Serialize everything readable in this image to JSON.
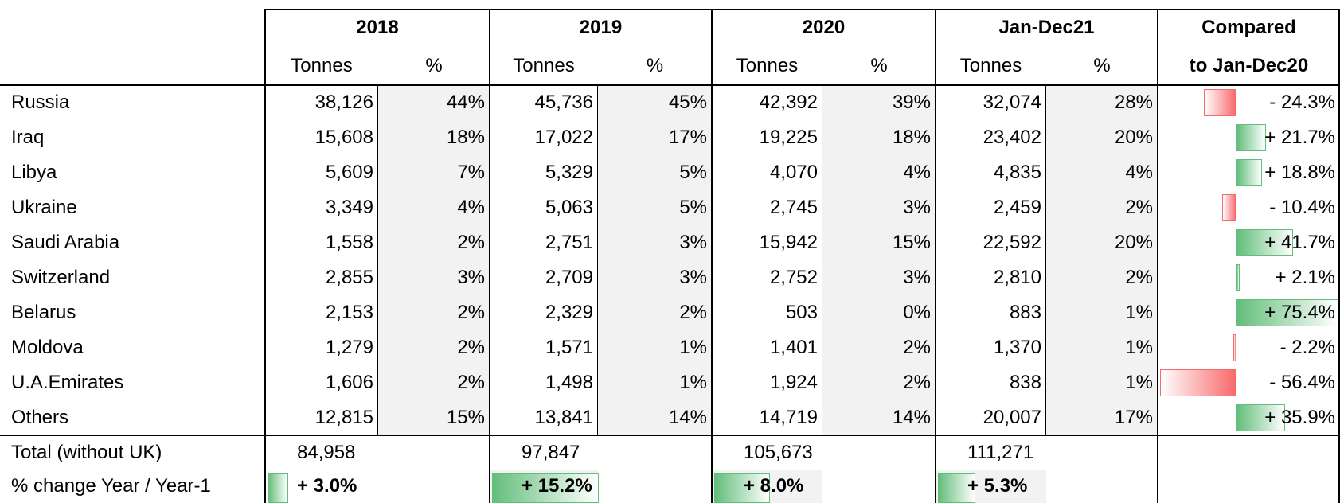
{
  "header": {
    "groups": [
      "2018",
      "2019",
      "2020",
      "Jan-Dec21"
    ],
    "subheaders": [
      "Tonnes",
      "%",
      "Tonnes",
      "%",
      "Tonnes",
      "%",
      "Tonnes",
      "%"
    ],
    "compared": [
      "Compared",
      "to Jan-Dec20"
    ]
  },
  "rows": [
    {
      "label": "Russia",
      "cells": [
        "38,126",
        "44%",
        "45,736",
        "45%",
        "42,392",
        "39%",
        "32,074",
        "28%"
      ],
      "change": {
        "value": -24.3,
        "label": "- 24.3%"
      }
    },
    {
      "label": "Iraq",
      "cells": [
        "15,608",
        "18%",
        "17,022",
        "17%",
        "19,225",
        "18%",
        "23,402",
        "20%"
      ],
      "change": {
        "value": 21.7,
        "label": "+ 21.7%"
      }
    },
    {
      "label": "Libya",
      "cells": [
        "5,609",
        "7%",
        "5,329",
        "5%",
        "4,070",
        "4%",
        "4,835",
        "4%"
      ],
      "change": {
        "value": 18.8,
        "label": "+ 18.8%"
      }
    },
    {
      "label": "Ukraine",
      "cells": [
        "3,349",
        "4%",
        "5,063",
        "5%",
        "2,745",
        "3%",
        "2,459",
        "2%"
      ],
      "change": {
        "value": -10.4,
        "label": "- 10.4%"
      }
    },
    {
      "label": "Saudi Arabia",
      "cells": [
        "1,558",
        "2%",
        "2,751",
        "3%",
        "15,942",
        "15%",
        "22,592",
        "20%"
      ],
      "change": {
        "value": 41.7,
        "label": "+ 41.7%"
      }
    },
    {
      "label": "Switzerland",
      "cells": [
        "2,855",
        "3%",
        "2,709",
        "3%",
        "2,752",
        "3%",
        "2,810",
        "2%"
      ],
      "change": {
        "value": 2.1,
        "label": "+ 2.1%"
      }
    },
    {
      "label": "Belarus",
      "cells": [
        "2,153",
        "2%",
        "2,329",
        "2%",
        "503",
        "0%",
        "883",
        "1%"
      ],
      "change": {
        "value": 75.4,
        "label": "+ 75.4%"
      }
    },
    {
      "label": "Moldova",
      "cells": [
        "1,279",
        "2%",
        "1,571",
        "1%",
        "1,401",
        "2%",
        "1,370",
        "1%"
      ],
      "change": {
        "value": -2.2,
        "label": "- 2.2%"
      }
    },
    {
      "label": "U.A.Emirates",
      "cells": [
        "1,606",
        "2%",
        "1,498",
        "1%",
        "1,924",
        "2%",
        "838",
        "1%"
      ],
      "change": {
        "value": -56.4,
        "label": "- 56.4%"
      }
    },
    {
      "label": "Others",
      "cells": [
        "12,815",
        "15%",
        "13,841",
        "14%",
        "14,719",
        "14%",
        "20,007",
        "17%"
      ],
      "change": {
        "value": 35.9,
        "label": "+ 35.9%"
      }
    }
  ],
  "total": {
    "label": "Total (without UK)",
    "values": [
      "84,958",
      "97,847",
      "105,673",
      "111,271"
    ]
  },
  "change_row": {
    "label": "% change Year / Year-1",
    "values": [
      {
        "value": 3.0,
        "label": "+ 3.0%"
      },
      {
        "value": 15.2,
        "label": "+ 15.2%"
      },
      {
        "value": 8.0,
        "label": "+ 8.0%"
      },
      {
        "value": 5.3,
        "label": "+ 5.3%"
      }
    ]
  }
}
